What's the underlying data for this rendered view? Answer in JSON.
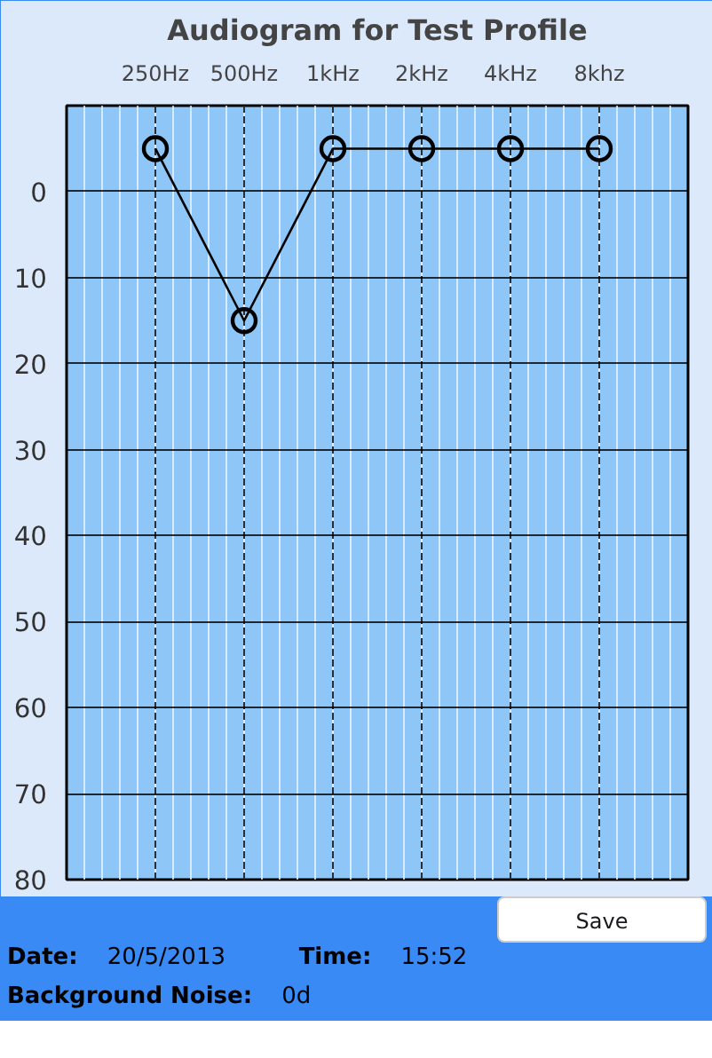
{
  "chart_data": {
    "type": "line",
    "title": "Audiogram for Test Profile",
    "categories": [
      "250Hz",
      "500Hz",
      "1kHz",
      "2kHz",
      "4kHz",
      "8khz"
    ],
    "series": [
      {
        "color": "#000000",
        "values": [
          -5,
          15,
          -5,
          -5,
          -5,
          -5
        ]
      }
    ],
    "ylim": [
      80,
      -10
    ],
    "yticks": [
      0,
      10,
      20,
      30,
      40,
      50,
      60,
      70,
      80
    ],
    "grid": true,
    "marker": "circle",
    "line_style": "solid",
    "annotations": [
      "Save",
      "Date: 20/5/2013",
      "Time: 15:52",
      "Background Noise: 0d"
    ]
  }
}
